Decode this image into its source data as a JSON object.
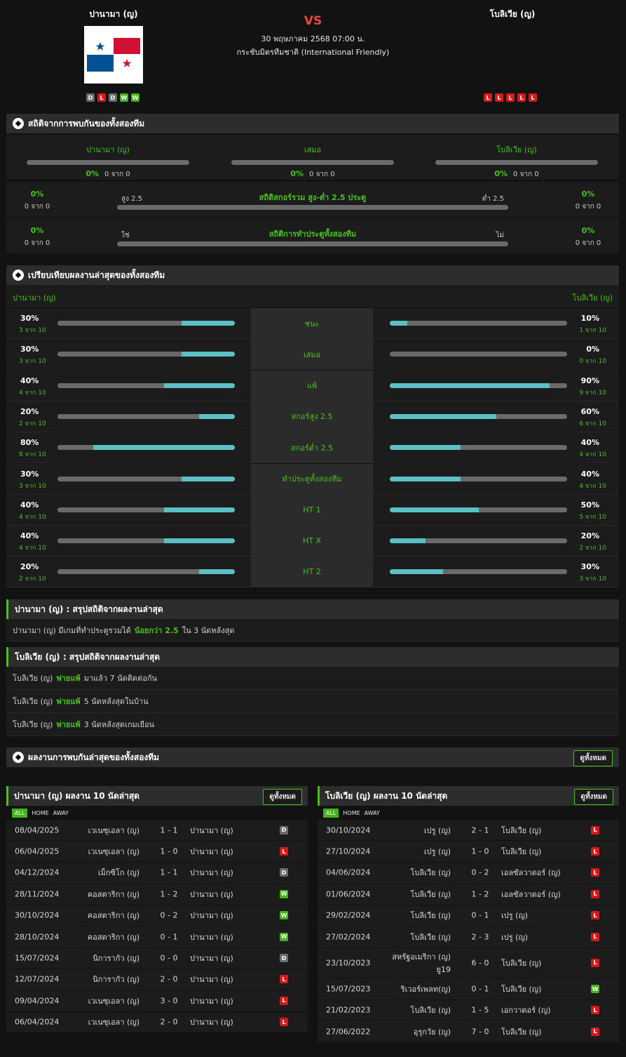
{
  "header": {
    "home_team": "ปานามา (ญ)",
    "away_team": "โบลิเวีย (ญ)",
    "vs": "VS",
    "datetime": "30 พฤษภาคม 2568 07:00 น.",
    "competition": "กระชับมิตรทีมชาติ (International Friendly)",
    "home_form": [
      "D",
      "L",
      "D",
      "W",
      "W"
    ],
    "away_form": [
      "L",
      "L",
      "L",
      "L",
      "L"
    ]
  },
  "h2h": {
    "title": "สถิติจากการพบกันของทั้งสองทีม",
    "cols": [
      {
        "label": "ปานามา (ญ)",
        "pct": "0%",
        "of": "0 จาก 0"
      },
      {
        "label": "เสมอ",
        "pct": "0%",
        "of": "0 จาก 0"
      },
      {
        "label": "โบลิเวีย (ญ)",
        "pct": "0%",
        "of": "0 จาก 0"
      }
    ],
    "ou": {
      "title": "สถิติสกอร์รวม สูง-ต่ำ 2.5 ประตู",
      "left_label": "สูง 2.5",
      "right_label": "ต่ำ 2.5",
      "left_pct": "0%",
      "left_of": "0 จาก 0",
      "right_pct": "0%",
      "right_of": "0 จาก 0"
    },
    "btts": {
      "title": "สถิติการทำประตูทั้งสองทีม",
      "left_label": "ใช่",
      "right_label": "ไม่",
      "left_pct": "0%",
      "left_of": "0 จาก 0",
      "right_pct": "0%",
      "right_of": "0 จาก 0"
    }
  },
  "compare": {
    "title": "เปรียบเทียบผลงานล่าสุดของทั้งสองทีม",
    "home": "ปานามา (ญ)",
    "away": "โบลิเวีย (ญ)",
    "rows": [
      {
        "label": "ชนะ",
        "lp": "30%",
        "ls": "3 จาก 10",
        "lv": 0.3,
        "rp": "10%",
        "rs": "1 จาก 10",
        "rv": 0.1
      },
      {
        "label": "เสมอ",
        "lp": "30%",
        "ls": "3 จาก 10",
        "lv": 0.3,
        "rp": "0%",
        "rs": "0 จาก 10",
        "rv": 0.0
      },
      {
        "label": "แพ้",
        "lp": "40%",
        "ls": "4 จาก 10",
        "lv": 0.4,
        "rp": "90%",
        "rs": "9 จาก 10",
        "rv": 0.9
      },
      {
        "label": "สกอร์สูง 2.5",
        "lp": "20%",
        "ls": "2 จาก 10",
        "lv": 0.2,
        "rp": "60%",
        "rs": "6 จาก 10",
        "rv": 0.6
      },
      {
        "label": "สกอร์ต่ำ 2.5",
        "lp": "80%",
        "ls": "8 จาก 10",
        "lv": 0.8,
        "rp": "40%",
        "rs": "4 จาก 10",
        "rv": 0.4
      },
      {
        "label": "ทำประตูทั้งสองทีม",
        "lp": "30%",
        "ls": "3 จาก 10",
        "lv": 0.3,
        "rp": "40%",
        "rs": "4 จาก 10",
        "rv": 0.4
      },
      {
        "label": "HT 1",
        "lp": "40%",
        "ls": "4 จาก 10",
        "lv": 0.4,
        "rp": "50%",
        "rs": "5 จาก 10",
        "rv": 0.5
      },
      {
        "label": "HT X",
        "lp": "40%",
        "ls": "4 จาก 10",
        "lv": 0.4,
        "rp": "20%",
        "rs": "2 จาก 10",
        "rv": 0.2
      },
      {
        "label": "HT 2",
        "lp": "20%",
        "ls": "2 จาก 10",
        "lv": 0.2,
        "rp": "30%",
        "rs": "3 จาก 10",
        "rv": 0.3
      }
    ]
  },
  "summary_home": {
    "title": "ปานามา (ญ) : สรุปสถิติจากผลงานล่าสุด",
    "rows": [
      {
        "pre": "ปานามา (ญ)  มีเกมที่ทำประตูรวมได้",
        "hl": "น้อยกว่า  2.5",
        "post": "ใน 3 นัดหลังสุด"
      }
    ]
  },
  "summary_away": {
    "title": "โบลิเวีย (ญ) : สรุปสถิติจากผลงานล่าสุด",
    "rows": [
      {
        "pre": "โบลิเวีย (ญ)",
        "hl": "พ่ายแพ้",
        "post": "มาแล้ว 7 นัดติดต่อกัน"
      },
      {
        "pre": "โบลิเวีย (ญ)",
        "hl": "พ่ายแพ้",
        "post": "5  นัดหลังสุดในบ้าน"
      },
      {
        "pre": "โบลิเวีย (ญ)",
        "hl": "พ่ายแพ้",
        "post": "3  นัดหลังสุดเกมเยือน"
      }
    ]
  },
  "h2h_results": {
    "title": "ผลงานการพบกันล่าสุดของทั้งสองทีม",
    "view_all": "ดูทั้งหมด"
  },
  "recent_home": {
    "title": "ปานามา (ญ) ผลงาน 10 นัดล่าสุด",
    "view_all": "ดูทั้งหมด",
    "tabs": [
      "ALL",
      "HOME",
      "AWAY"
    ],
    "matches": [
      {
        "date": "08/04/2025",
        "home": "เวเนซุเอลา (ญ)",
        "score": "1 - 1",
        "away": "ปานามา (ญ)",
        "res": "D"
      },
      {
        "date": "06/04/2025",
        "home": "เวเนซุเอลา (ญ)",
        "score": "1 - 0",
        "away": "ปานามา (ญ)",
        "res": "L"
      },
      {
        "date": "04/12/2024",
        "home": "เม็กซิโก (ญ)",
        "score": "1 - 1",
        "away": "ปานามา (ญ)",
        "res": "D"
      },
      {
        "date": "28/11/2024",
        "home": "คอสตาริกา (ญ)",
        "score": "1 - 2",
        "away": "ปานามา (ญ)",
        "res": "W"
      },
      {
        "date": "30/10/2024",
        "home": "คอสตาริกา (ญ)",
        "score": "0 - 2",
        "away": "ปานามา (ญ)",
        "res": "W"
      },
      {
        "date": "28/10/2024",
        "home": "คอสตาริกา (ญ)",
        "score": "0 - 1",
        "away": "ปานามา (ญ)",
        "res": "W"
      },
      {
        "date": "15/07/2024",
        "home": "นิการากัว (ญ)",
        "score": "0 - 0",
        "away": "ปานามา (ญ)",
        "res": "D"
      },
      {
        "date": "12/07/2024",
        "home": "นิการากัว (ญ)",
        "score": "2 - 0",
        "away": "ปานามา (ญ)",
        "res": "L"
      },
      {
        "date": "09/04/2024",
        "home": "เวเนซุเอลา (ญ)",
        "score": "3 - 0",
        "away": "ปานามา (ญ)",
        "res": "L"
      },
      {
        "date": "06/04/2024",
        "home": "เวเนซุเอลา (ญ)",
        "score": "2 - 0",
        "away": "ปานามา (ญ)",
        "res": "L"
      }
    ]
  },
  "recent_away": {
    "title": "โบลิเวีย (ญ) ผลงาน 10 นัดล่าสุด",
    "view_all": "ดูทั้งหมด",
    "tabs": [
      "ALL",
      "HOME",
      "AWAY"
    ],
    "matches": [
      {
        "date": "30/10/2024",
        "home": "เปรู (ญ)",
        "score": "2 - 1",
        "away": "โบลิเวีย (ญ)",
        "res": "L"
      },
      {
        "date": "27/10/2024",
        "home": "เปรู (ญ)",
        "score": "1 - 0",
        "away": "โบลิเวีย (ญ)",
        "res": "L"
      },
      {
        "date": "04/06/2024",
        "home": "โบลิเวีย (ญ)",
        "score": "0 - 2",
        "away": "เอลซัลวาดอร์ (ญ)",
        "res": "L"
      },
      {
        "date": "01/06/2024",
        "home": "โบลิเวีย (ญ)",
        "score": "1 - 2",
        "away": "เอลซัลวาดอร์ (ญ)",
        "res": "L"
      },
      {
        "date": "29/02/2024",
        "home": "โบลิเวีย (ญ)",
        "score": "0 - 1",
        "away": "เปรู (ญ)",
        "res": "L"
      },
      {
        "date": "27/02/2024",
        "home": "โบลิเวีย (ญ)",
        "score": "2 - 3",
        "away": "เปรู (ญ)",
        "res": "L"
      },
      {
        "date": "23/10/2023",
        "home": "สหรัฐอเมริกา (ญ) ยู19",
        "score": "6 - 0",
        "away": "โบลิเวีย (ญ)",
        "res": "L"
      },
      {
        "date": "15/07/2023",
        "home": "ริเวอร์เพลท(ญ)",
        "score": "0 - 1",
        "away": "โบลิเวีย (ญ)",
        "res": "W"
      },
      {
        "date": "21/02/2023",
        "home": "โบลิเวีย (ญ)",
        "score": "1 - 5",
        "away": "เอกวาดอร์ (ญ)",
        "res": "L"
      },
      {
        "date": "27/06/2022",
        "home": "อุรุกวัย (ญ)",
        "score": "7 - 0",
        "away": "โบลิเวีย (ญ)",
        "res": "L"
      }
    ]
  }
}
